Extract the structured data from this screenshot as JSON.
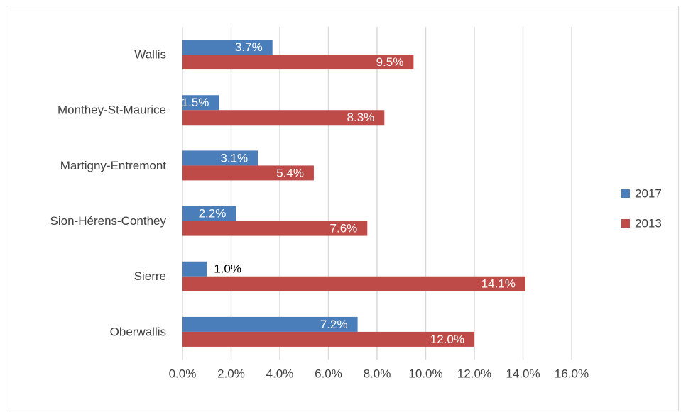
{
  "colors": {
    "series_2017": "#4a7ebb",
    "series_2013": "#be4b48",
    "gridline": "#d9d9d9",
    "text": "#404040"
  },
  "chart_data": {
    "type": "bar",
    "orientation": "horizontal",
    "categories": [
      "Wallis",
      "Monthey-St-Maurice",
      "Martigny-Entremont",
      "Sion-Hérens-Conthey",
      "Sierre",
      "Oberwallis"
    ],
    "series": [
      {
        "name": "2017",
        "values": [
          3.7,
          1.5,
          3.1,
          2.2,
          1.0,
          7.2
        ],
        "labels": [
          "3.7%",
          "1.5%",
          "3.1%",
          "2.2%",
          "1.0%",
          "7.2%"
        ]
      },
      {
        "name": "2013",
        "values": [
          9.5,
          8.3,
          5.4,
          7.6,
          14.1,
          12.0
        ],
        "labels": [
          "9.5%",
          "8.3%",
          "5.4%",
          "7.6%",
          "14.1%",
          "12.0%"
        ]
      }
    ],
    "xlim": [
      0,
      16
    ],
    "x_ticks": [
      "0.0%",
      "2.0%",
      "4.0%",
      "6.0%",
      "8.0%",
      "10.0%",
      "12.0%",
      "14.0%",
      "16.0%"
    ],
    "grid": true,
    "legend_position": "right"
  }
}
